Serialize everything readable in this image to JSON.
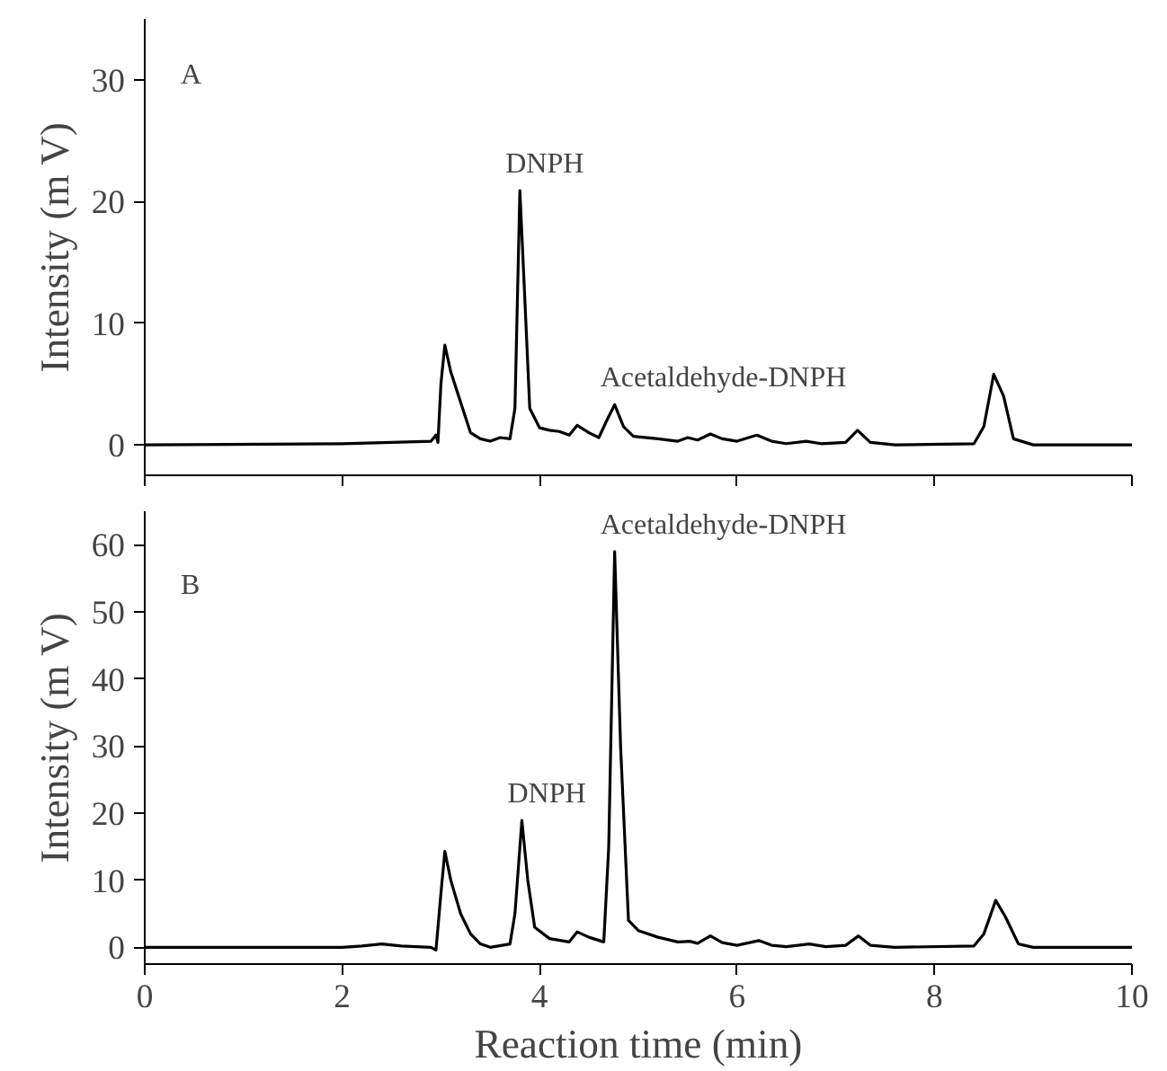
{
  "chart_data": [
    {
      "type": "line",
      "ylabel": "Intensity (m V)",
      "xlim": [
        0,
        10
      ],
      "xticks": [
        0,
        2,
        4,
        6,
        8,
        10
      ],
      "ylim": [
        -2.5,
        35
      ],
      "yticks": [
        0,
        10,
        20,
        30
      ],
      "tick_labels": "y",
      "grid": false,
      "annotations": [
        "A",
        {
          "text": "DNPH",
          "x": 3.8,
          "y": 20.9
        },
        {
          "text": "Acetaldehyde-DNPH",
          "x": 4.76,
          "y": 3.3
        }
      ],
      "series": [
        {
          "color": "#000000",
          "x": [
            0,
            2,
            2.5,
            2.9,
            2.95,
            2.97,
            3.0,
            3.04,
            3.1,
            3.2,
            3.3,
            3.4,
            3.5,
            3.6,
            3.7,
            3.75,
            3.8,
            3.85,
            3.9,
            4.0,
            4.1,
            4.2,
            4.3,
            4.38,
            4.5,
            4.6,
            4.68,
            4.76,
            4.85,
            4.95,
            5.2,
            5.4,
            5.5,
            5.6,
            5.73,
            5.85,
            6.0,
            6.2,
            6.35,
            6.5,
            6.7,
            6.85,
            7.1,
            7.22,
            7.35,
            7.6,
            8.4,
            8.5,
            8.6,
            8.7,
            8.8,
            9.0,
            10
          ],
          "values": [
            0,
            0.1,
            0.2,
            0.3,
            0.8,
            0.2,
            5,
            8.2,
            6,
            3.5,
            1,
            0.5,
            0.3,
            0.6,
            0.5,
            3,
            20.9,
            12,
            3,
            1.4,
            1.2,
            1.1,
            0.8,
            1.6,
            1,
            0.6,
            2,
            3.3,
            1.5,
            0.7,
            0.5,
            0.3,
            0.6,
            0.4,
            0.9,
            0.5,
            0.3,
            0.8,
            0.3,
            0.1,
            0.3,
            0.1,
            0.2,
            1.2,
            0.2,
            0,
            0.1,
            1.5,
            5.8,
            4,
            0.5,
            0,
            0
          ]
        }
      ]
    },
    {
      "type": "line",
      "xlabel": "Reaction time (min)",
      "ylabel": "Intensity (m V)",
      "xlim": [
        0,
        10
      ],
      "xticks": [
        0,
        2,
        4,
        6,
        8,
        10
      ],
      "ylim": [
        -2.5,
        65
      ],
      "yticks": [
        0,
        10,
        20,
        30,
        40,
        50,
        60
      ],
      "grid": false,
      "annotations": [
        "B",
        {
          "text": "DNPH",
          "x": 3.82,
          "y": 18.9
        },
        {
          "text": "Acetaldehyde-DNPH",
          "x": 4.76,
          "y": 59
        }
      ],
      "series": [
        {
          "color": "#000000",
          "x": [
            0,
            2.0,
            2.2,
            2.4,
            2.6,
            2.9,
            2.95,
            3.0,
            3.04,
            3.1,
            3.2,
            3.3,
            3.4,
            3.5,
            3.7,
            3.75,
            3.82,
            3.88,
            3.95,
            4.1,
            4.3,
            4.38,
            4.5,
            4.65,
            4.7,
            4.76,
            4.82,
            4.9,
            5.0,
            5.2,
            5.4,
            5.52,
            5.6,
            5.73,
            5.85,
            6.0,
            6.22,
            6.35,
            6.5,
            6.73,
            6.9,
            7.1,
            7.23,
            7.35,
            7.6,
            8.4,
            8.5,
            8.62,
            8.72,
            8.85,
            9.0,
            10
          ],
          "values": [
            0,
            0,
            0.2,
            0.5,
            0.2,
            0,
            -0.4,
            8,
            14.3,
            10,
            5,
            2,
            0.5,
            0,
            0.5,
            5,
            18.9,
            10,
            3,
            1.3,
            0.8,
            2.3,
            1.5,
            0.8,
            15,
            59,
            30,
            4,
            2.5,
            1.5,
            0.8,
            0.9,
            0.6,
            1.7,
            0.7,
            0.3,
            1,
            0.3,
            0.1,
            0.5,
            0.1,
            0.3,
            1.7,
            0.3,
            0,
            0.2,
            2,
            7,
            4.5,
            0.5,
            0,
            0
          ]
        }
      ]
    }
  ]
}
